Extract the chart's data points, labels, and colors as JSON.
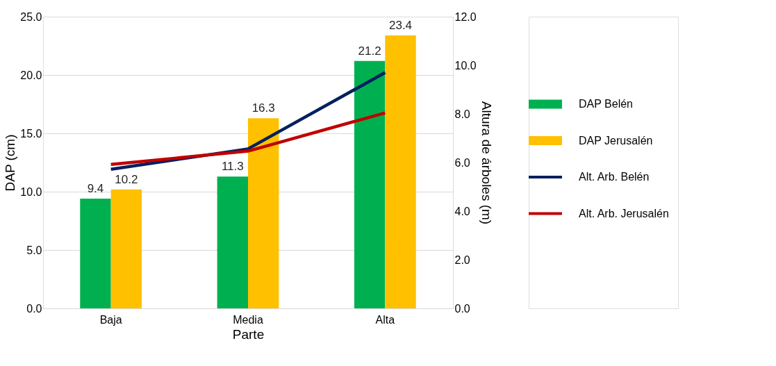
{
  "chart_data": {
    "type": "bar",
    "categories": [
      "Baja",
      "Media",
      "Alta"
    ],
    "xlabel": "Parte",
    "ylabel": "DAP (cm)",
    "y2label": "Altura de árboles (m)",
    "series": [
      {
        "name": "DAP Belén",
        "color": "#00b050",
        "values": [
          9.4,
          11.3,
          21.2
        ],
        "value_labels": [
          "9.4",
          "11.3",
          "21.2"
        ]
      },
      {
        "name": "DAP Jerusalén",
        "color": "#ffc000",
        "values": [
          10.2,
          16.3,
          23.4
        ],
        "value_labels": [
          "10.2",
          "16.3",
          "23.4"
        ]
      },
      {
        "name": "Alt. Arb. Belén",
        "type": "line",
        "axis": "y2",
        "color": "#002060",
        "values": [
          5.72,
          6.56,
          9.7
        ]
      },
      {
        "name": "Alt. Arb. Jerusalén",
        "type": "line",
        "axis": "y2",
        "color": "#c00000",
        "values": [
          5.92,
          6.47,
          8.04
        ]
      }
    ],
    "ylim": [
      0,
      25
    ],
    "yticks": [
      {
        "value": 0,
        "label": "0.0"
      },
      {
        "value": 5,
        "label": "5.0"
      },
      {
        "value": 10,
        "label": "10.0"
      },
      {
        "value": 15,
        "label": "15.0"
      },
      {
        "value": 20,
        "label": "20.0"
      },
      {
        "value": 25,
        "label": "25.0"
      }
    ],
    "y2lim": [
      0,
      12
    ],
    "y2ticks": [
      {
        "value": 0,
        "label": "0.0"
      },
      {
        "value": 2,
        "label": "2.0"
      },
      {
        "value": 4,
        "label": "4.0"
      },
      {
        "value": 6,
        "label": "6.0"
      },
      {
        "value": 8,
        "label": "8.0"
      },
      {
        "value": 10,
        "label": "10.0"
      },
      {
        "value": 12,
        "label": "12.0"
      }
    ],
    "grid": "y",
    "legend": "right",
    "line_style": "solid",
    "marker": "none"
  }
}
